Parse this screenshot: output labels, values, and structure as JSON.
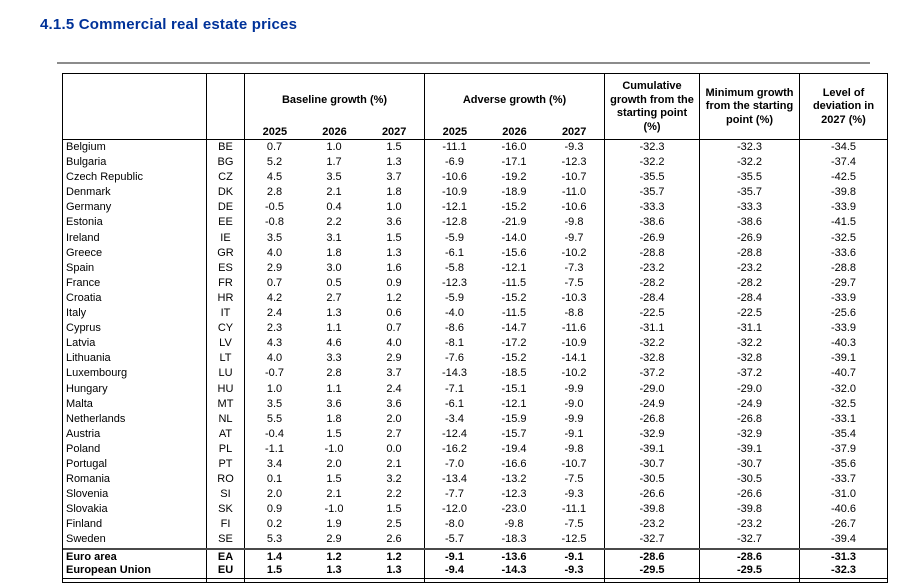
{
  "page": {
    "title": "4.1.5 Commercial real estate prices"
  },
  "table": {
    "years": [
      "2025",
      "2026",
      "2027"
    ],
    "headers": {
      "baseline": "Baseline growth (%)",
      "adverse": "Adverse growth (%)",
      "cumulative": "Cumulative growth from the starting point (%)",
      "minimum": "Minimum growth from the starting point (%)",
      "deviation": "Level of deviation in 2027 (%)"
    },
    "rows": [
      {
        "country": "Belgium",
        "code": "BE",
        "baseline": [
          "0.7",
          "1.0",
          "1.5"
        ],
        "adverse": [
          "-11.1",
          "-16.0",
          "-9.3"
        ],
        "cumulative": "-32.3",
        "minimum": "-32.3",
        "deviation": "-34.5",
        "bold": false
      },
      {
        "country": "Bulgaria",
        "code": "BG",
        "baseline": [
          "5.2",
          "1.7",
          "1.3"
        ],
        "adverse": [
          "-6.9",
          "-17.1",
          "-12.3"
        ],
        "cumulative": "-32.2",
        "minimum": "-32.2",
        "deviation": "-37.4",
        "bold": false
      },
      {
        "country": "Czech Republic",
        "code": "CZ",
        "baseline": [
          "4.5",
          "3.5",
          "3.7"
        ],
        "adverse": [
          "-10.6",
          "-19.2",
          "-10.7"
        ],
        "cumulative": "-35.5",
        "minimum": "-35.5",
        "deviation": "-42.5",
        "bold": false
      },
      {
        "country": "Denmark",
        "code": "DK",
        "baseline": [
          "2.8",
          "2.1",
          "1.8"
        ],
        "adverse": [
          "-10.9",
          "-18.9",
          "-11.0"
        ],
        "cumulative": "-35.7",
        "minimum": "-35.7",
        "deviation": "-39.8",
        "bold": false
      },
      {
        "country": "Germany",
        "code": "DE",
        "baseline": [
          "-0.5",
          "0.4",
          "1.0"
        ],
        "adverse": [
          "-12.1",
          "-15.2",
          "-10.6"
        ],
        "cumulative": "-33.3",
        "minimum": "-33.3",
        "deviation": "-33.9",
        "bold": false
      },
      {
        "country": "Estonia",
        "code": "EE",
        "baseline": [
          "-0.8",
          "2.2",
          "3.6"
        ],
        "adverse": [
          "-12.8",
          "-21.9",
          "-9.8"
        ],
        "cumulative": "-38.6",
        "minimum": "-38.6",
        "deviation": "-41.5",
        "bold": false
      },
      {
        "country": "Ireland",
        "code": "IE",
        "baseline": [
          "3.5",
          "3.1",
          "1.5"
        ],
        "adverse": [
          "-5.9",
          "-14.0",
          "-9.7"
        ],
        "cumulative": "-26.9",
        "minimum": "-26.9",
        "deviation": "-32.5",
        "bold": false
      },
      {
        "country": "Greece",
        "code": "GR",
        "baseline": [
          "4.0",
          "1.8",
          "1.3"
        ],
        "adverse": [
          "-6.1",
          "-15.6",
          "-10.2"
        ],
        "cumulative": "-28.8",
        "minimum": "-28.8",
        "deviation": "-33.6",
        "bold": false
      },
      {
        "country": "Spain",
        "code": "ES",
        "baseline": [
          "2.9",
          "3.0",
          "1.6"
        ],
        "adverse": [
          "-5.8",
          "-12.1",
          "-7.3"
        ],
        "cumulative": "-23.2",
        "minimum": "-23.2",
        "deviation": "-28.8",
        "bold": false
      },
      {
        "country": "France",
        "code": "FR",
        "baseline": [
          "0.7",
          "0.5",
          "0.9"
        ],
        "adverse": [
          "-12.3",
          "-11.5",
          "-7.5"
        ],
        "cumulative": "-28.2",
        "minimum": "-28.2",
        "deviation": "-29.7",
        "bold": false
      },
      {
        "country": "Croatia",
        "code": "HR",
        "baseline": [
          "4.2",
          "2.7",
          "1.2"
        ],
        "adverse": [
          "-5.9",
          "-15.2",
          "-10.3"
        ],
        "cumulative": "-28.4",
        "minimum": "-28.4",
        "deviation": "-33.9",
        "bold": false
      },
      {
        "country": "Italy",
        "code": "IT",
        "baseline": [
          "2.4",
          "1.3",
          "0.6"
        ],
        "adverse": [
          "-4.0",
          "-11.5",
          "-8.8"
        ],
        "cumulative": "-22.5",
        "minimum": "-22.5",
        "deviation": "-25.6",
        "bold": false
      },
      {
        "country": "Cyprus",
        "code": "CY",
        "baseline": [
          "2.3",
          "1.1",
          "0.7"
        ],
        "adverse": [
          "-8.6",
          "-14.7",
          "-11.6"
        ],
        "cumulative": "-31.1",
        "minimum": "-31.1",
        "deviation": "-33.9",
        "bold": false
      },
      {
        "country": "Latvia",
        "code": "LV",
        "baseline": [
          "4.3",
          "4.6",
          "4.0"
        ],
        "adverse": [
          "-8.1",
          "-17.2",
          "-10.9"
        ],
        "cumulative": "-32.2",
        "minimum": "-32.2",
        "deviation": "-40.3",
        "bold": false
      },
      {
        "country": "Lithuania",
        "code": "LT",
        "baseline": [
          "4.0",
          "3.3",
          "2.9"
        ],
        "adverse": [
          "-7.6",
          "-15.2",
          "-14.1"
        ],
        "cumulative": "-32.8",
        "minimum": "-32.8",
        "deviation": "-39.1",
        "bold": false
      },
      {
        "country": "Luxembourg",
        "code": "LU",
        "baseline": [
          "-0.7",
          "2.8",
          "3.7"
        ],
        "adverse": [
          "-14.3",
          "-18.5",
          "-10.2"
        ],
        "cumulative": "-37.2",
        "minimum": "-37.2",
        "deviation": "-40.7",
        "bold": false
      },
      {
        "country": "Hungary",
        "code": "HU",
        "baseline": [
          "1.0",
          "1.1",
          "2.4"
        ],
        "adverse": [
          "-7.1",
          "-15.1",
          "-9.9"
        ],
        "cumulative": "-29.0",
        "minimum": "-29.0",
        "deviation": "-32.0",
        "bold": false
      },
      {
        "country": "Malta",
        "code": "MT",
        "baseline": [
          "3.5",
          "3.6",
          "3.6"
        ],
        "adverse": [
          "-6.1",
          "-12.1",
          "-9.0"
        ],
        "cumulative": "-24.9",
        "minimum": "-24.9",
        "deviation": "-32.5",
        "bold": false
      },
      {
        "country": "Netherlands",
        "code": "NL",
        "baseline": [
          "5.5",
          "1.8",
          "2.0"
        ],
        "adverse": [
          "-3.4",
          "-15.9",
          "-9.9"
        ],
        "cumulative": "-26.8",
        "minimum": "-26.8",
        "deviation": "-33.1",
        "bold": false
      },
      {
        "country": "Austria",
        "code": "AT",
        "baseline": [
          "-0.4",
          "1.5",
          "2.7"
        ],
        "adverse": [
          "-12.4",
          "-15.7",
          "-9.1"
        ],
        "cumulative": "-32.9",
        "minimum": "-32.9",
        "deviation": "-35.4",
        "bold": false
      },
      {
        "country": "Poland",
        "code": "PL",
        "baseline": [
          "-1.1",
          "-1.0",
          "0.0"
        ],
        "adverse": [
          "-16.2",
          "-19.4",
          "-9.8"
        ],
        "cumulative": "-39.1",
        "minimum": "-39.1",
        "deviation": "-37.9",
        "bold": false
      },
      {
        "country": "Portugal",
        "code": "PT",
        "baseline": [
          "3.4",
          "2.0",
          "2.1"
        ],
        "adverse": [
          "-7.0",
          "-16.6",
          "-10.7"
        ],
        "cumulative": "-30.7",
        "minimum": "-30.7",
        "deviation": "-35.6",
        "bold": false
      },
      {
        "country": "Romania",
        "code": "RO",
        "baseline": [
          "0.1",
          "1.5",
          "3.2"
        ],
        "adverse": [
          "-13.4",
          "-13.2",
          "-7.5"
        ],
        "cumulative": "-30.5",
        "minimum": "-30.5",
        "deviation": "-33.7",
        "bold": false
      },
      {
        "country": "Slovenia",
        "code": "SI",
        "baseline": [
          "2.0",
          "2.1",
          "2.2"
        ],
        "adverse": [
          "-7.7",
          "-12.3",
          "-9.3"
        ],
        "cumulative": "-26.6",
        "minimum": "-26.6",
        "deviation": "-31.0",
        "bold": false
      },
      {
        "country": "Slovakia",
        "code": "SK",
        "baseline": [
          "0.9",
          "-1.0",
          "1.5"
        ],
        "adverse": [
          "-12.0",
          "-23.0",
          "-11.1"
        ],
        "cumulative": "-39.8",
        "minimum": "-39.8",
        "deviation": "-40.6",
        "bold": false
      },
      {
        "country": "Finland",
        "code": "FI",
        "baseline": [
          "0.2",
          "1.9",
          "2.5"
        ],
        "adverse": [
          "-8.0",
          "-9.8",
          "-7.5"
        ],
        "cumulative": "-23.2",
        "minimum": "-23.2",
        "deviation": "-26.7",
        "bold": false
      },
      {
        "country": "Sweden",
        "code": "SE",
        "baseline": [
          "5.3",
          "2.9",
          "2.6"
        ],
        "adverse": [
          "-5.7",
          "-18.3",
          "-12.5"
        ],
        "cumulative": "-32.7",
        "minimum": "-32.7",
        "deviation": "-39.4",
        "bold": false
      },
      {
        "country": "Euro area",
        "code": "EA",
        "baseline": [
          "1.4",
          "1.2",
          "1.2"
        ],
        "adverse": [
          "-9.1",
          "-13.6",
          "-9.1"
        ],
        "cumulative": "-28.6",
        "minimum": "-28.6",
        "deviation": "-31.3",
        "bold": true
      },
      {
        "country": "European Union",
        "code": "EU",
        "baseline": [
          "1.5",
          "1.3",
          "1.3"
        ],
        "adverse": [
          "-9.4",
          "-14.3",
          "-9.3"
        ],
        "cumulative": "-29.5",
        "minimum": "-29.5",
        "deviation": "-32.3",
        "bold": true
      }
    ]
  }
}
